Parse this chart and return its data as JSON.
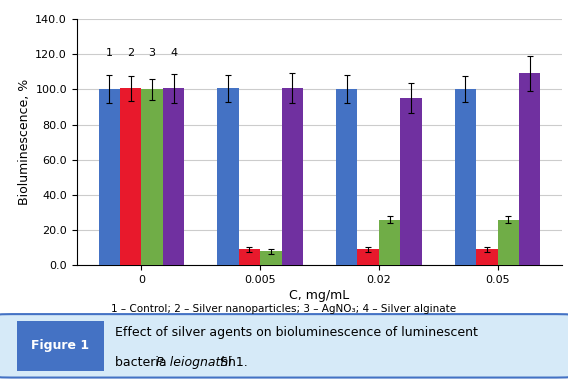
{
  "categories": [
    "0",
    "0.005",
    "0.02",
    "0.05"
  ],
  "series": {
    "Control": {
      "values": [
        100.0,
        100.5,
        100.3,
        100.2
      ],
      "errors": [
        8.0,
        7.5,
        8.0,
        7.5
      ],
      "color": "#4472C4"
    },
    "Silver nanoparticles": {
      "values": [
        100.5,
        9.0,
        9.0,
        9.0
      ],
      "errors": [
        7.0,
        1.5,
        1.5,
        1.5
      ],
      "color": "#E8192C"
    },
    "AgNO3": {
      "values": [
        100.0,
        8.0,
        26.0,
        26.0
      ],
      "errors": [
        6.0,
        1.5,
        2.0,
        2.0
      ],
      "color": "#70AD47"
    },
    "Silver alginate": {
      "values": [
        100.5,
        100.5,
        95.0,
        109.0
      ],
      "errors": [
        8.0,
        8.5,
        8.5,
        10.0
      ],
      "color": "#7030A0"
    }
  },
  "xlabel": "C, mg/mL",
  "ylabel": "Bioluminescence, %",
  "ylim": [
    0,
    140
  ],
  "yticks": [
    0.0,
    20.0,
    40.0,
    60.0,
    80.0,
    100.0,
    120.0,
    140.0
  ],
  "bar_width": 0.18,
  "legend_labels": [
    "1",
    "2",
    "3",
    "4"
  ],
  "legend_note": "1 – Control; 2 – Silver nanoparticles; 3 – AgNO₃; 4 – Silver alginate",
  "figure_label": "Figure 1",
  "background_color": "#FFFFFF",
  "plot_bg_color": "#FFFFFF",
  "grid_color": "#CCCCCC",
  "label_box_color": "#4472C4",
  "caption_bg_color": "#D6EAF8",
  "caption_border_color": "#4472C4"
}
